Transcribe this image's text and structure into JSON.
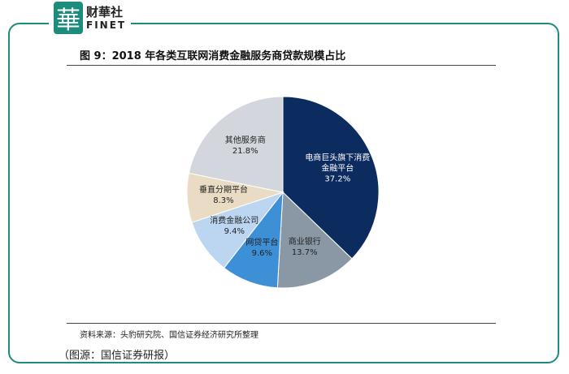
{
  "logo": {
    "mark": "華",
    "name": "财華社",
    "en": "FINET"
  },
  "chart_data": {
    "type": "pie",
    "title": "图 9：2018 年各类互联网消费金融服务商贷款规模占比",
    "categories": [
      "电商巨头旗下消费金融平台",
      "商业银行",
      "网贷平台",
      "消费金融公司",
      "垂直分期平台",
      "其他服务商"
    ],
    "values": [
      37.2,
      13.7,
      9.6,
      9.4,
      8.3,
      21.8
    ],
    "value_labels": [
      "37.2%",
      "13.7%",
      "9.6%",
      "9.4%",
      "8.3%",
      "21.8%"
    ],
    "colors": [
      "#0c2b5e",
      "#8a98a6",
      "#3d8fd6",
      "#bcd6f2",
      "#eadcc4",
      "#d3d7dd"
    ],
    "source": "资料来源：头豹研究院、国信证券经济研究所整理"
  },
  "caption": "（图源：国信证券研报）"
}
